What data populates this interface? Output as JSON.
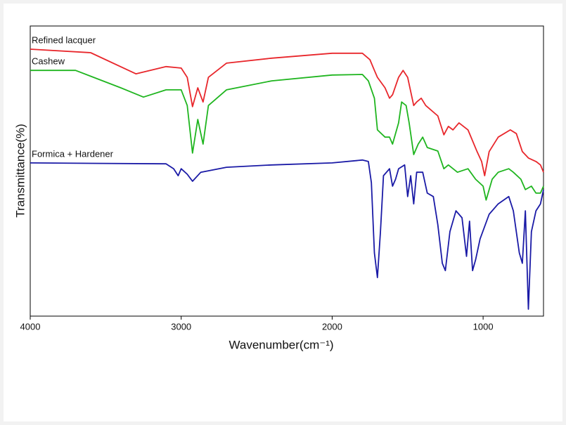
{
  "chart_data": {
    "type": "line",
    "x_label": "Wavenumber(cm⁻¹)",
    "y_label": "Transmittance(%)",
    "xlim": [
      4000,
      600
    ],
    "ylim": [
      0,
      100
    ],
    "xticks": [
      4000,
      3000,
      2000,
      1000
    ],
    "series": [
      {
        "name": "Refined lacquer",
        "color": "#e8262b",
        "x": [
          4000,
          3600,
          3300,
          3100,
          3000,
          2960,
          2925,
          2890,
          2855,
          2820,
          2700,
          2400,
          2000,
          1800,
          1750,
          1720,
          1700,
          1650,
          1620,
          1600,
          1560,
          1530,
          1500,
          1460,
          1440,
          1410,
          1380,
          1300,
          1260,
          1230,
          1200,
          1160,
          1100,
          1040,
          1010,
          990,
          960,
          900,
          820,
          780,
          740,
          700,
          650,
          620,
          600
        ],
        "values": [
          92.0,
          90.8,
          83.5,
          86.0,
          85.5,
          82.3,
          72.2,
          78.7,
          73.8,
          82.3,
          87.2,
          88.9,
          90.6,
          90.6,
          88.4,
          84.7,
          82.3,
          78.7,
          75.1,
          76.3,
          82.3,
          84.7,
          82.3,
          72.6,
          73.8,
          75.1,
          72.6,
          69.0,
          62.5,
          65.4,
          64.2,
          66.6,
          64.2,
          56.7,
          53.3,
          48.4,
          56.7,
          61.7,
          64.2,
          62.9,
          56.7,
          54.5,
          53.3,
          52.1,
          49.6
        ]
      },
      {
        "name": "Cashew",
        "color": "#1fb51f",
        "x": [
          4000,
          3700,
          3400,
          3250,
          3100,
          3000,
          2960,
          2925,
          2890,
          2855,
          2820,
          2700,
          2400,
          2000,
          1800,
          1760,
          1720,
          1700,
          1650,
          1620,
          1600,
          1560,
          1540,
          1510,
          1490,
          1460,
          1430,
          1400,
          1370,
          1300,
          1260,
          1230,
          1170,
          1100,
          1050,
          1000,
          980,
          940,
          900,
          830,
          800,
          750,
          720,
          680,
          650,
          620,
          600
        ],
        "values": [
          84.7,
          84.7,
          78.7,
          75.5,
          78.0,
          78.0,
          72.6,
          56.2,
          67.8,
          59.3,
          72.6,
          78.0,
          81.1,
          83.1,
          83.3,
          81.1,
          75.1,
          64.2,
          61.7,
          61.7,
          59.3,
          66.6,
          73.8,
          72.6,
          66.6,
          55.7,
          59.3,
          61.7,
          58.1,
          56.9,
          50.8,
          52.1,
          49.6,
          50.8,
          47.2,
          44.8,
          40.0,
          47.2,
          49.6,
          50.8,
          49.6,
          47.2,
          43.6,
          44.8,
          42.4,
          42.4,
          44.8
        ]
      },
      {
        "name": "Formica + Hardener",
        "color": "#1a1aa6",
        "x": [
          4000,
          3100,
          3050,
          3020,
          3000,
          2960,
          2925,
          2870,
          2700,
          2400,
          2000,
          1800,
          1760,
          1740,
          1720,
          1700,
          1680,
          1660,
          1620,
          1600,
          1580,
          1560,
          1520,
          1500,
          1480,
          1460,
          1440,
          1400,
          1370,
          1330,
          1300,
          1270,
          1250,
          1220,
          1180,
          1140,
          1110,
          1090,
          1070,
          1050,
          1020,
          960,
          900,
          830,
          800,
          760,
          740,
          720,
          700,
          680,
          650,
          620,
          600
        ],
        "values": [
          52.8,
          52.5,
          50.8,
          48.4,
          50.8,
          48.9,
          46.5,
          49.6,
          51.3,
          52.1,
          52.8,
          53.8,
          53.3,
          46.0,
          21.8,
          13.3,
          29.1,
          48.4,
          50.8,
          44.8,
          47.2,
          50.8,
          52.1,
          41.2,
          48.4,
          38.7,
          49.6,
          49.6,
          42.4,
          41.2,
          31.5,
          18.2,
          15.7,
          29.1,
          36.3,
          33.9,
          20.6,
          32.7,
          15.7,
          19.4,
          26.6,
          35.1,
          38.7,
          41.2,
          36.3,
          21.8,
          18.2,
          36.3,
          2.4,
          29.1,
          36.3,
          38.7,
          43.6
        ]
      }
    ]
  }
}
